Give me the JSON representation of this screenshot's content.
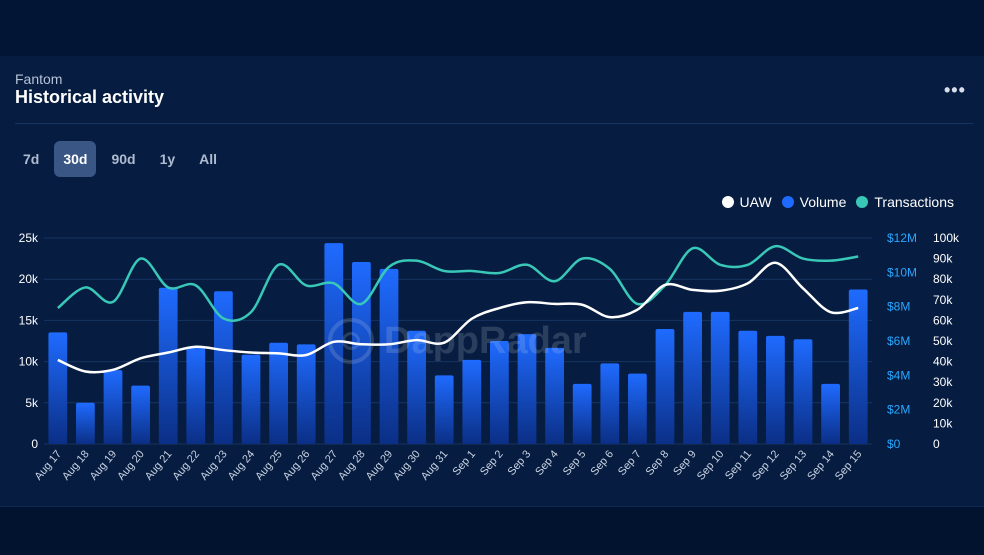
{
  "header": {
    "subtitle": "Fantom",
    "title": "Historical activity",
    "more_label": "•••"
  },
  "ranges": [
    {
      "label": "7d",
      "active": false
    },
    {
      "label": "30d",
      "active": true
    },
    {
      "label": "90d",
      "active": false
    },
    {
      "label": "1y",
      "active": false
    },
    {
      "label": "All",
      "active": false
    }
  ],
  "watermark": "DappRadar",
  "colors": {
    "uaw": "#ffffff",
    "volume": "#1f6bff",
    "transactions": "#39c8b7",
    "left_axis": "#ffffff",
    "volume_axis": "#28a7ff",
    "tx_axis": "#ffffff"
  },
  "chart_data": {
    "type": "bar",
    "categories": [
      "Aug 17",
      "Aug 18",
      "Aug 19",
      "Aug 20",
      "Aug 21",
      "Aug 22",
      "Aug 23",
      "Aug 24",
      "Aug 25",
      "Aug 26",
      "Aug 27",
      "Aug 28",
      "Aug 29",
      "Aug 30",
      "Aug 31",
      "Sep 1",
      "Sep 2",
      "Sep 3",
      "Sep 4",
      "Sep 5",
      "Sep 6",
      "Sep 7",
      "Sep 8",
      "Sep 9",
      "Sep 10",
      "Sep 11",
      "Sep 12",
      "Sep 13",
      "Sep 14",
      "Sep 15"
    ],
    "legend": [
      {
        "name": "UAW",
        "color": "#ffffff"
      },
      {
        "name": "Volume",
        "color": "#1f6bff"
      },
      {
        "name": "Transactions",
        "color": "#39c8b7"
      }
    ],
    "legend_position": "top-right",
    "axes": {
      "left": {
        "ticks": [
          "0",
          "5k",
          "10k",
          "15k",
          "20k",
          "25k"
        ],
        "values": [
          0,
          5000,
          10000,
          15000,
          20000,
          25000
        ],
        "range": [
          0,
          25000
        ]
      },
      "volume": {
        "ticks": [
          "$0",
          "$2M",
          "$4M",
          "$6M",
          "$8M",
          "$10M",
          "$12M"
        ],
        "values": [
          0,
          2,
          4,
          6,
          8,
          10,
          12
        ],
        "range": [
          0,
          12
        ]
      },
      "transactions": {
        "ticks": [
          "0",
          "10k",
          "20k",
          "30k",
          "40k",
          "50k",
          "60k",
          "70k",
          "80k",
          "90k",
          "100k"
        ],
        "values": [
          0,
          10000,
          20000,
          30000,
          40000,
          50000,
          60000,
          70000,
          80000,
          90000,
          100000
        ],
        "range": [
          0,
          100000
        ]
      }
    },
    "grid": true,
    "series": [
      {
        "name": "Volume",
        "type": "bar",
        "axis": "volume",
        "values": [
          6.5,
          2.4,
          4.3,
          3.4,
          9.1,
          5.6,
          8.9,
          5.2,
          5.9,
          5.8,
          11.7,
          10.6,
          10.2,
          6.6,
          4.0,
          4.9,
          6.0,
          6.4,
          5.6,
          3.5,
          4.7,
          4.1,
          6.7,
          7.7,
          7.7,
          6.6,
          6.3,
          6.1,
          3.5,
          9.0
        ]
      },
      {
        "name": "UAW",
        "type": "line",
        "axis": "left",
        "values": [
          10200,
          8800,
          9000,
          10400,
          11100,
          11800,
          11400,
          11100,
          11000,
          10800,
          12400,
          12100,
          12100,
          12600,
          12300,
          15200,
          16500,
          17200,
          17000,
          16900,
          15400,
          16300,
          19300,
          18700,
          18600,
          19500,
          22000,
          18900,
          16000,
          16500
        ]
      },
      {
        "name": "Transactions",
        "type": "line",
        "axis": "transactions",
        "values": [
          66000,
          76000,
          69000,
          90000,
          76000,
          77000,
          61000,
          64000,
          87000,
          77000,
          78000,
          68000,
          86000,
          89000,
          84000,
          84000,
          83000,
          87000,
          79000,
          90000,
          85000,
          68000,
          77000,
          95000,
          87000,
          87000,
          96000,
          90000,
          89000,
          91000
        ]
      }
    ]
  }
}
